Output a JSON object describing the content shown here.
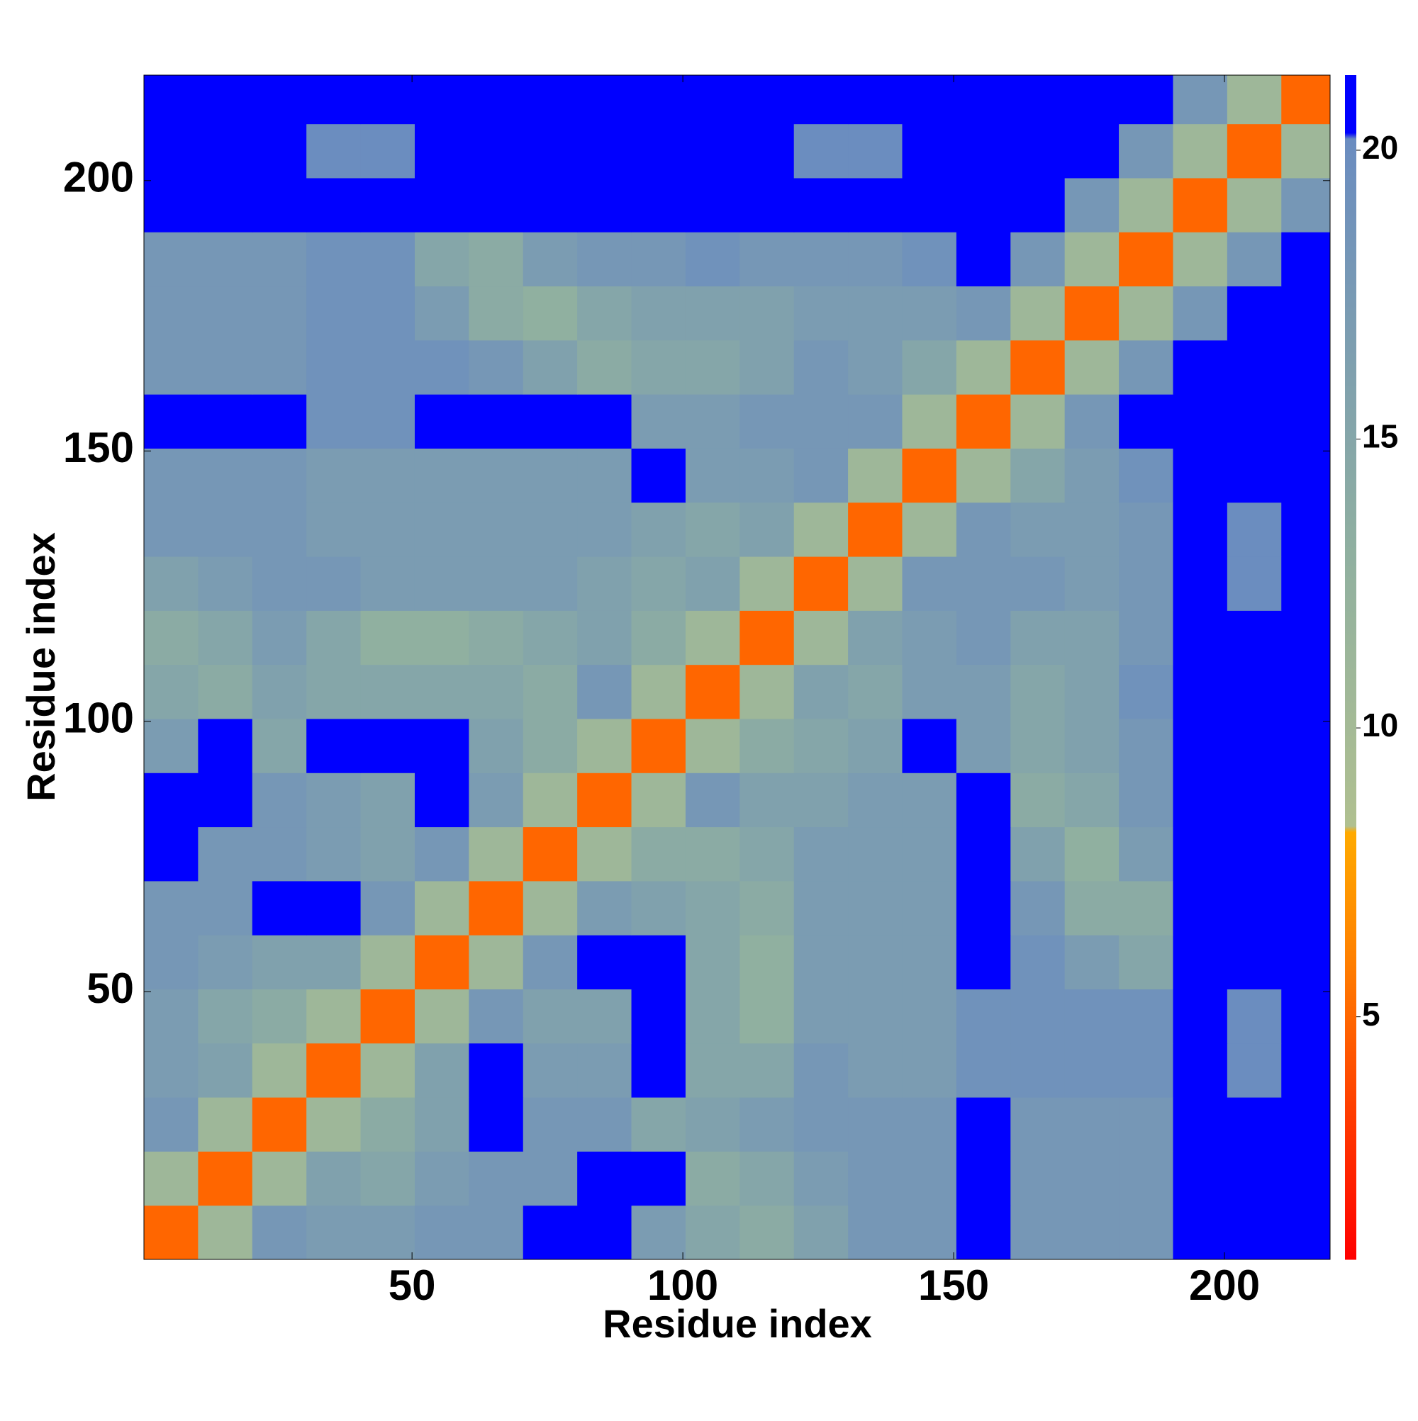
{
  "chart_data": {
    "type": "heatmap",
    "xlabel": "Residue index",
    "ylabel": "Residue index",
    "x_bins": [
      0.5,
      10.5,
      20.5,
      30.5,
      40.5,
      50.5,
      60.5,
      70.5,
      80.5,
      90.5,
      100.5,
      110.5,
      120.5,
      130.5,
      140.5,
      150.5,
      160.5,
      170.5,
      180.5,
      190.5,
      200.5,
      210.5,
      219.5
    ],
    "y_bins": [
      0.5,
      10.5,
      20.5,
      30.5,
      40.5,
      50.5,
      60.5,
      70.5,
      80.5,
      90.5,
      100.5,
      110.5,
      120.5,
      130.5,
      140.5,
      150.5,
      160.5,
      170.5,
      180.5,
      190.5,
      200.5,
      210.5,
      219.5
    ],
    "values": [
      [
        5,
        11,
        18,
        17,
        17,
        18,
        18,
        21,
        21,
        17,
        15,
        14,
        16,
        18,
        18,
        21,
        18,
        18,
        18,
        21,
        21,
        21
      ],
      [
        11,
        5,
        11,
        16,
        15,
        17,
        18,
        18,
        21,
        21,
        14,
        15,
        17,
        18,
        18,
        21,
        18,
        18,
        18,
        21,
        21,
        21
      ],
      [
        18,
        11,
        5,
        11,
        14,
        16,
        21,
        18,
        18,
        15,
        16,
        17,
        18,
        18,
        18,
        21,
        18,
        18,
        18,
        21,
        21,
        21
      ],
      [
        17,
        16,
        11,
        5,
        11,
        16,
        21,
        17,
        17,
        21,
        15,
        15,
        18,
        17,
        17,
        19,
        19,
        19,
        19,
        21,
        20,
        21
      ],
      [
        17,
        15,
        14,
        11,
        5,
        11,
        18,
        16,
        16,
        21,
        15,
        13,
        17,
        17,
        17,
        19,
        19,
        19,
        19,
        21,
        20,
        21
      ],
      [
        18,
        17,
        16,
        16,
        11,
        5,
        11,
        18,
        21,
        21,
        15,
        13,
        17,
        17,
        17,
        21,
        19,
        17,
        15,
        21,
        21,
        21
      ],
      [
        18,
        18,
        21,
        21,
        18,
        11,
        5,
        11,
        17,
        16,
        15,
        14,
        17,
        17,
        17,
        21,
        18,
        14,
        14,
        21,
        21,
        21
      ],
      [
        21,
        18,
        18,
        17,
        16,
        18,
        11,
        5,
        11,
        14,
        14,
        15,
        17,
        17,
        17,
        21,
        16,
        13,
        17,
        21,
        21,
        21
      ],
      [
        21,
        21,
        18,
        17,
        16,
        21,
        17,
        11,
        5,
        11,
        18,
        16,
        16,
        17,
        17,
        21,
        14,
        15,
        18,
        21,
        21,
        21
      ],
      [
        17,
        21,
        15,
        21,
        21,
        21,
        16,
        14,
        11,
        5,
        11,
        14,
        15,
        16,
        21,
        17,
        15,
        16,
        18,
        21,
        21,
        21
      ],
      [
        15,
        14,
        16,
        15,
        15,
        15,
        15,
        14,
        18,
        11,
        5,
        11,
        16,
        15,
        17,
        17,
        15,
        16,
        19,
        21,
        21,
        21
      ],
      [
        14,
        15,
        17,
        15,
        13,
        13,
        14,
        15,
        16,
        14,
        11,
        5,
        11,
        16,
        17,
        18,
        16,
        16,
        18,
        21,
        21,
        21
      ],
      [
        16,
        17,
        18,
        18,
        17,
        17,
        17,
        17,
        16,
        15,
        16,
        11,
        5,
        11,
        18,
        18,
        18,
        17,
        18,
        21,
        20,
        21
      ],
      [
        18,
        18,
        18,
        17,
        17,
        17,
        17,
        17,
        17,
        16,
        15,
        16,
        11,
        5,
        11,
        18,
        17,
        17,
        18,
        21,
        20,
        21
      ],
      [
        18,
        18,
        18,
        17,
        17,
        17,
        17,
        17,
        17,
        21,
        17,
        17,
        18,
        11,
        5,
        11,
        15,
        17,
        19,
        21,
        21,
        21
      ],
      [
        21,
        21,
        21,
        19,
        19,
        21,
        21,
        21,
        21,
        17,
        17,
        18,
        18,
        18,
        11,
        5,
        11,
        18,
        21,
        21,
        21,
        21
      ],
      [
        18,
        18,
        18,
        19,
        19,
        19,
        18,
        16,
        14,
        15,
        15,
        16,
        18,
        17,
        15,
        11,
        5,
        11,
        18,
        21,
        21,
        21
      ],
      [
        18,
        18,
        18,
        19,
        19,
        17,
        14,
        13,
        15,
        16,
        16,
        16,
        17,
        17,
        17,
        18,
        11,
        5,
        11,
        18,
        21,
        21
      ],
      [
        18,
        18,
        18,
        19,
        19,
        15,
        14,
        17,
        18,
        18,
        19,
        18,
        18,
        18,
        19,
        21,
        18,
        11,
        5,
        11,
        18,
        21
      ],
      [
        21,
        21,
        21,
        21,
        21,
        21,
        21,
        21,
        21,
        21,
        21,
        21,
        21,
        21,
        21,
        21,
        21,
        18,
        11,
        5,
        11,
        18
      ],
      [
        21,
        21,
        21,
        20,
        20,
        21,
        21,
        21,
        21,
        21,
        21,
        21,
        20,
        20,
        21,
        21,
        21,
        21,
        18,
        11,
        5,
        11
      ],
      [
        21,
        21,
        21,
        21,
        21,
        21,
        21,
        21,
        21,
        21,
        21,
        21,
        21,
        21,
        21,
        21,
        21,
        21,
        21,
        18,
        11,
        5
      ]
    ],
    "xlim": [
      0.5,
      219.5
    ],
    "ylim": [
      0.5,
      219.5
    ],
    "xticks": [
      50,
      100,
      150,
      200
    ],
    "yticks": [
      50,
      100,
      150,
      200
    ],
    "colorbar": {
      "lim": [
        0.8,
        21.3
      ],
      "ticks": [
        5,
        10,
        15,
        20
      ]
    },
    "colorscale": [
      [
        0.8,
        "#ff0000"
      ],
      [
        3.5,
        "#ff4000"
      ],
      [
        6,
        "#ff8000"
      ],
      [
        8.2,
        "#ffaa00"
      ],
      [
        8.3,
        "#b0c090"
      ],
      [
        13,
        "#90b0a0"
      ],
      [
        20.2,
        "#6a8cc0"
      ],
      [
        20.3,
        "#0000ff"
      ],
      [
        21.3,
        "#0000ff"
      ]
    ]
  }
}
